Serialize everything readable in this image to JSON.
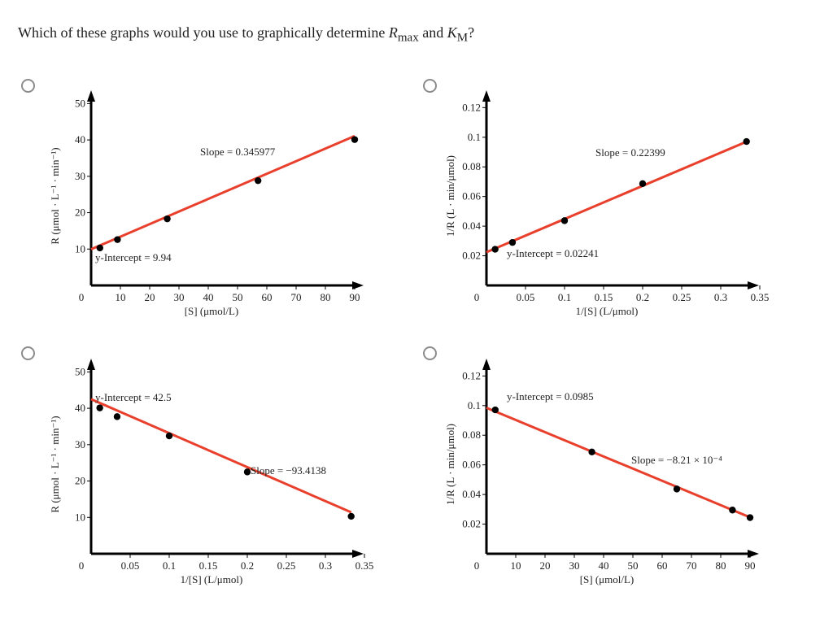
{
  "question": {
    "prefix": "Which of these graphs would you use to graphically determine ",
    "r_sym": "R",
    "r_sub": "max",
    "and": " and ",
    "k_sym": "K",
    "k_sub": "M",
    "suffix": "?"
  },
  "colors": {
    "line": "#e8402c",
    "point": "#000000",
    "axis": "#000000",
    "radio": "#8c8c8c"
  },
  "chart_data": [
    {
      "id": "A",
      "type": "scatter",
      "ylabel": "R (μmol · L⁻¹ · min⁻¹)",
      "xlabel": "[S] (μmol/L)",
      "xlim": [
        0,
        100
      ],
      "ylim": [
        0,
        55
      ],
      "xticks": [
        10,
        20,
        30,
        40,
        50,
        60,
        70,
        80,
        90
      ],
      "xticklabels": [
        "10",
        "20",
        "30",
        "40",
        "50",
        "60",
        "70",
        "80",
        "90"
      ],
      "yticks": [
        10,
        20,
        30,
        40,
        50
      ],
      "yticklabels": [
        "10",
        "20",
        "30",
        "40",
        "50"
      ],
      "origin_label": "0",
      "x": [
        3,
        9,
        26,
        57,
        90
      ],
      "y": [
        10.3,
        12.6,
        18.3,
        28.8,
        40.1
      ],
      "fit": {
        "slope": 0.345977,
        "intercept": 9.94,
        "x0": 0,
        "x1": 90
      },
      "ann_slope": "Slope = 0.345977",
      "ann_intercept": "y-Intercept = 9.94"
    },
    {
      "id": "B",
      "type": "scatter",
      "ylabel": "1/R (L · min/μmol)",
      "xlabel": "1/[S] (L/μmol)",
      "xlim": [
        0,
        0.375
      ],
      "ylim": [
        0,
        0.135
      ],
      "xticks": [
        0.05,
        0.1,
        0.15,
        0.2,
        0.25,
        0.3,
        0.35
      ],
      "xticklabels": [
        "0.05",
        "0.1",
        "0.15",
        "0.2",
        "0.25",
        "0.3",
        "0.35"
      ],
      "yticks": [
        0.02,
        0.04,
        0.06,
        0.08,
        0.1,
        0.12
      ],
      "yticklabels": [
        "0.02",
        "0.04",
        "0.06",
        "0.08",
        "0.1",
        "0.12"
      ],
      "origin_label": "0",
      "x": [
        0.0111,
        0.0333,
        0.1,
        0.2,
        0.333
      ],
      "y": [
        0.0244,
        0.029,
        0.0437,
        0.0687,
        0.0971
      ],
      "fit": {
        "slope": 0.22399,
        "intercept": 0.02241,
        "x0": 0,
        "x1": 0.333
      },
      "ann_slope": "Slope = 0.22399",
      "ann_intercept": "y-Intercept = 0.02241"
    },
    {
      "id": "C",
      "type": "scatter",
      "ylabel": "R (μmol · L⁻¹ · min⁻¹)",
      "xlabel": "1/[S] (L/μmol)",
      "xlim": [
        0,
        0.375
      ],
      "ylim": [
        0,
        55
      ],
      "xticks": [
        0.05,
        0.1,
        0.15,
        0.2,
        0.25,
        0.3,
        0.35
      ],
      "xticklabels": [
        "0.05",
        "0.1",
        "0.15",
        "0.2",
        "0.25",
        "0.3",
        "0.35"
      ],
      "yticks": [
        10,
        20,
        30,
        40,
        50
      ],
      "yticklabels": [
        "10",
        "20",
        "30",
        "40",
        "50"
      ],
      "origin_label": "0",
      "x": [
        0.0111,
        0.0333,
        0.1,
        0.2,
        0.333
      ],
      "y": [
        40.1,
        37.7,
        32.4,
        22.5,
        10.3
      ],
      "fit": {
        "slope": -93.4138,
        "intercept": 42.5,
        "x0": 0,
        "x1": 0.333
      },
      "ann_slope": "Slope = −93.4138",
      "ann_intercept": "y-Intercept = 42.5"
    },
    {
      "id": "D",
      "type": "scatter",
      "ylabel": "1/R (L · min/μmol)",
      "xlabel": "[S] (μmol/L)",
      "xlim": [
        0,
        100
      ],
      "ylim": [
        0,
        0.135
      ],
      "xticks": [
        10,
        20,
        30,
        40,
        50,
        60,
        70,
        80,
        90
      ],
      "xticklabels": [
        "10",
        "20",
        "30",
        "40",
        "50",
        "60",
        "70",
        "80",
        "90"
      ],
      "yticks": [
        0.02,
        0.04,
        0.06,
        0.08,
        0.1,
        0.12
      ],
      "yticklabels": [
        "0.02",
        "0.04",
        "0.06",
        "0.08",
        "0.1",
        "0.12"
      ],
      "origin_label": "0",
      "x": [
        3,
        36,
        65,
        84,
        90
      ],
      "y": [
        0.0971,
        0.0687,
        0.0437,
        0.0295,
        0.0244
      ],
      "fit": {
        "slope": -0.000821,
        "intercept": 0.0985,
        "x0": 0,
        "x1": 90
      },
      "ann_slope": "Slope = −8.21 × 10⁻⁴",
      "ann_intercept": "y-Intercept = 0.0985"
    }
  ]
}
